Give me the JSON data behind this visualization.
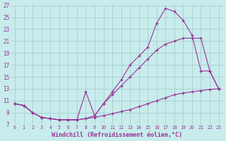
{
  "xlabel": "Windchill (Refroidissement éolien,°C)",
  "background_color": "#c8ecec",
  "line_color": "#993399",
  "grid_color": "#a0c8c8",
  "xlim": [
    -0.5,
    23.5
  ],
  "ylim": [
    7,
    27
  ],
  "xticks": [
    0,
    1,
    2,
    3,
    4,
    5,
    6,
    7,
    8,
    9,
    10,
    11,
    12,
    13,
    14,
    15,
    16,
    17,
    18,
    19,
    20,
    21,
    22,
    23
  ],
  "yticks": [
    7,
    9,
    11,
    13,
    15,
    17,
    19,
    21,
    23,
    25,
    27
  ],
  "line1_x": [
    0,
    1,
    2,
    3,
    4,
    5,
    6,
    7,
    8,
    9,
    10,
    11,
    12,
    13,
    14,
    15,
    16,
    17,
    18,
    19,
    20,
    21,
    22,
    23
  ],
  "line1_y": [
    10.5,
    10.2,
    9.0,
    8.2,
    8.0,
    7.8,
    7.8,
    7.8,
    8.0,
    8.2,
    8.5,
    8.8,
    9.2,
    9.5,
    10.0,
    10.5,
    11.0,
    11.5,
    12.0,
    12.3,
    12.5,
    12.7,
    12.9,
    13.0
  ],
  "line2_x": [
    0,
    1,
    2,
    3,
    4,
    5,
    6,
    7,
    8,
    9,
    10,
    11,
    12,
    13,
    14,
    15,
    16,
    17,
    18,
    19,
    20,
    21,
    22,
    23
  ],
  "line2_y": [
    10.5,
    10.2,
    9.0,
    8.2,
    8.0,
    7.8,
    7.8,
    7.8,
    8.0,
    8.5,
    10.5,
    12.5,
    14.5,
    17.0,
    18.5,
    20.0,
    24.0,
    26.5,
    26.0,
    24.5,
    22.0,
    16.0,
    16.0,
    13.0
  ],
  "line3_x": [
    0,
    1,
    2,
    3,
    4,
    5,
    6,
    7,
    8,
    9,
    10,
    11,
    12,
    13,
    14,
    15,
    16,
    17,
    18,
    19,
    20,
    21,
    22,
    23
  ],
  "line3_y": [
    10.5,
    10.2,
    9.0,
    8.2,
    8.0,
    7.8,
    7.8,
    7.8,
    12.5,
    8.5,
    10.5,
    12.0,
    13.5,
    15.0,
    16.5,
    18.0,
    19.5,
    20.5,
    21.0,
    21.5,
    21.5,
    21.5,
    16.0,
    13.0
  ]
}
